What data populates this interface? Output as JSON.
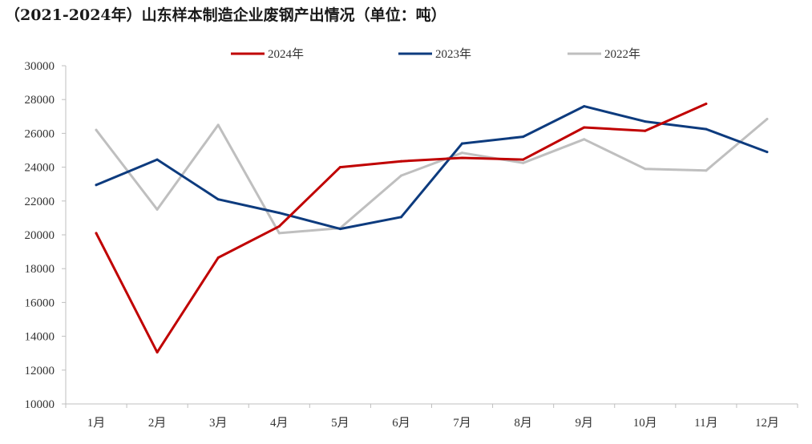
{
  "chart_data": {
    "type": "line",
    "title": "（2021-2024年）山东样本制造企业废钢产出情况（单位：吨）",
    "xlabel": "",
    "ylabel": "",
    "categories": [
      "1月",
      "2月",
      "3月",
      "4月",
      "5月",
      "6月",
      "7月",
      "8月",
      "9月",
      "10月",
      "11月",
      "12月"
    ],
    "ylim": [
      10000,
      30000
    ],
    "yticks": [
      10000,
      12000,
      14000,
      16000,
      18000,
      20000,
      22000,
      24000,
      26000,
      28000,
      30000
    ],
    "grid": false,
    "legend_position": "top",
    "series": [
      {
        "name": "2024年",
        "color": "#c00000",
        "values": [
          20100,
          13050,
          18650,
          20500,
          24000,
          24350,
          24550,
          24450,
          26350,
          26150,
          27750,
          null
        ]
      },
      {
        "name": "2023年",
        "color": "#0d3b7e",
        "values": [
          22950,
          24450,
          22100,
          21300,
          20350,
          21050,
          25400,
          25800,
          27600,
          26700,
          26250,
          24900
        ]
      },
      {
        "name": "2022年",
        "color": "#bfbfbf",
        "values": [
          26200,
          21500,
          26500,
          20100,
          20400,
          23500,
          24850,
          24250,
          25650,
          23900,
          23800,
          26850
        ]
      }
    ]
  }
}
